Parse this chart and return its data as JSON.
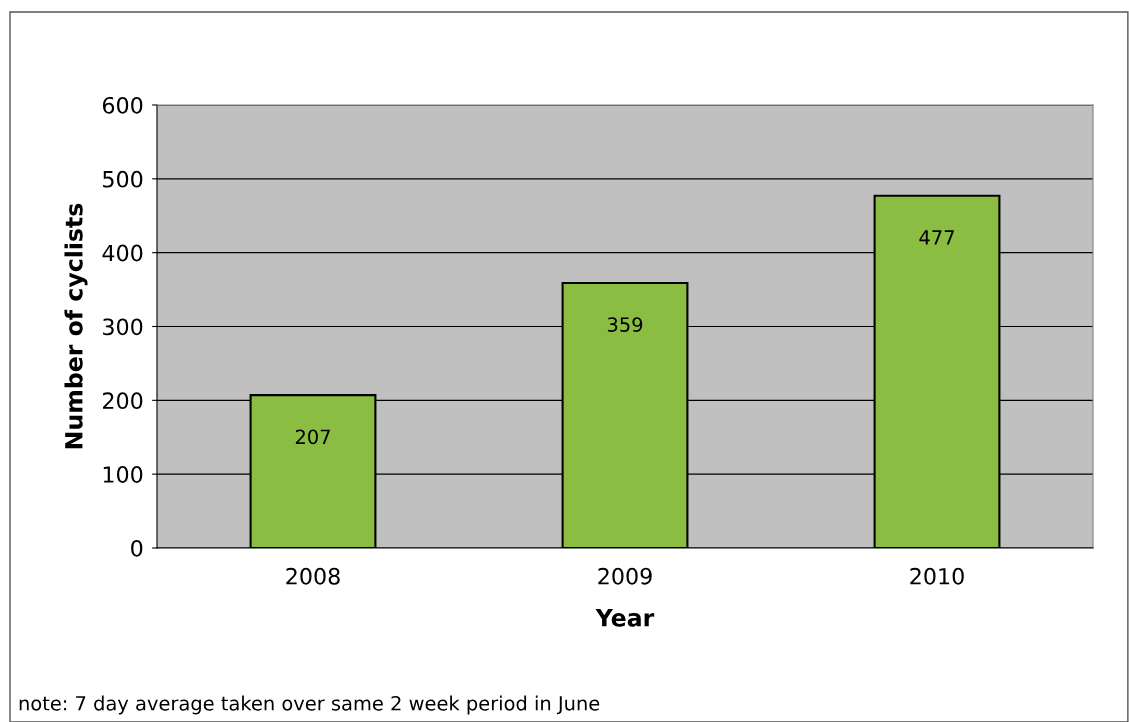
{
  "chart_data": {
    "type": "bar",
    "xlabel": "Year",
    "ylabel": "Number of cyclists",
    "categories": [
      "2008",
      "2009",
      "2010"
    ],
    "values": [
      207,
      359,
      477
    ],
    "color": "#8bbd42",
    "ylim": [
      0,
      600
    ],
    "yticks": [
      0,
      100,
      200,
      300,
      400,
      500,
      600
    ],
    "grid": "y",
    "data_labels": true,
    "annotations": [
      "note: 7 day average taken over same 2 week period in June"
    ]
  }
}
